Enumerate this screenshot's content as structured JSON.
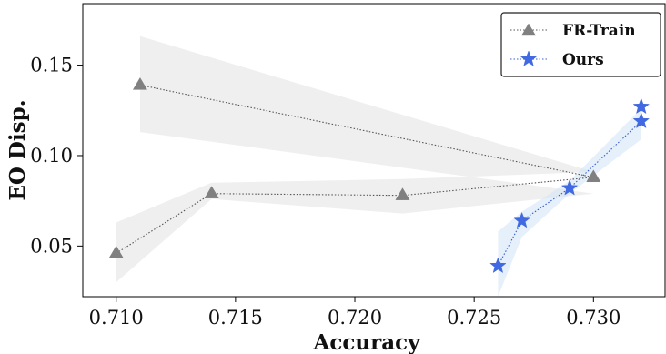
{
  "chart_data": {
    "type": "line",
    "title": "",
    "xlabel": "Accuracy",
    "ylabel": "EO Disp.",
    "xlim": [
      0.7086,
      0.733
    ],
    "ylim": [
      0.022,
      0.184
    ],
    "xticks": [
      0.71,
      0.715,
      0.72,
      0.725,
      0.73
    ],
    "xtick_labels": [
      "0.710",
      "0.715",
      "0.720",
      "0.725",
      "0.730"
    ],
    "yticks": [
      0.05,
      0.1,
      0.15
    ],
    "ytick_labels": [
      "0.05",
      "0.10",
      "0.15"
    ],
    "grid": false,
    "legend_position": "top-right",
    "series": [
      {
        "name": "FR-Train",
        "color": "#808080",
        "band_color": "#e2e2e2",
        "marker": "triangle",
        "line_style": "dotted",
        "points": [
          {
            "x": 0.71,
            "y": 0.046,
            "lo": 0.03,
            "hi": 0.063
          },
          {
            "x": 0.714,
            "y": 0.079,
            "lo": 0.076,
            "hi": 0.085
          },
          {
            "x": 0.722,
            "y": 0.078,
            "lo": 0.068,
            "hi": 0.087
          },
          {
            "x": 0.73,
            "y": 0.088,
            "lo": 0.079,
            "hi": 0.091
          },
          {
            "x": 0.711,
            "y": 0.139,
            "lo": 0.113,
            "hi": 0.166
          }
        ]
      },
      {
        "name": "Ours",
        "color": "#4169e1",
        "band_color": "#cfe4f6",
        "marker": "star",
        "line_style": "dotted",
        "points": [
          {
            "x": 0.726,
            "y": 0.039,
            "lo": 0.022,
            "hi": 0.058
          },
          {
            "x": 0.727,
            "y": 0.064,
            "lo": 0.055,
            "hi": 0.069
          },
          {
            "x": 0.729,
            "y": 0.082,
            "lo": 0.079,
            "hi": 0.086
          },
          {
            "x": 0.732,
            "y": 0.119,
            "lo": 0.109,
            "hi": 0.126
          },
          {
            "x": 0.732,
            "y": 0.127,
            "lo": 0.121,
            "hi": 0.131
          }
        ]
      }
    ]
  }
}
